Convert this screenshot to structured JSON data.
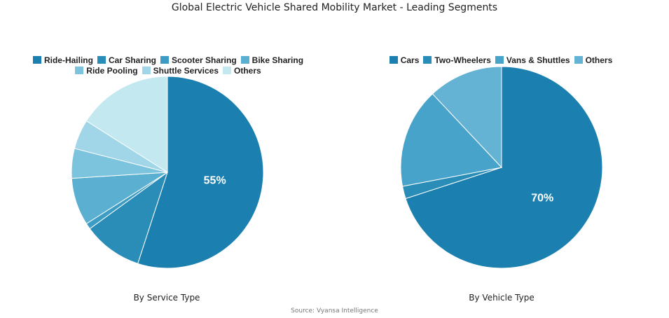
{
  "title": "Global Electric Vehicle Shared Mobility Market - Leading Segments",
  "source": "Source: Vyansa Intelligence",
  "chart_data": [
    {
      "type": "pie",
      "caption": "By Service Type",
      "legend_position": "top",
      "labels": [
        "Ride-Hailing",
        "Car Sharing",
        "Scooter Sharing",
        "Bike Sharing",
        "Ride Pooling",
        "Shuttle Services",
        "Others"
      ],
      "values": [
        55,
        10,
        1,
        8,
        5,
        5,
        16
      ],
      "colors": [
        "#1b80b0",
        "#2a8db8",
        "#3d9cc4",
        "#5bb0d1",
        "#7cc4dd",
        "#a0d6e7",
        "#c4e8f0"
      ],
      "shown_label": "55%"
    },
    {
      "type": "pie",
      "caption": "By Vehicle Type",
      "legend_position": "top",
      "labels": [
        "Cars",
        "Two-Wheelers",
        "Vans & Shuttles",
        "Others"
      ],
      "values": [
        70,
        2,
        16,
        12
      ],
      "colors": [
        "#1b80b0",
        "#2a8db8",
        "#47a3ca",
        "#64b3d4"
      ],
      "shown_label": "70%"
    }
  ]
}
